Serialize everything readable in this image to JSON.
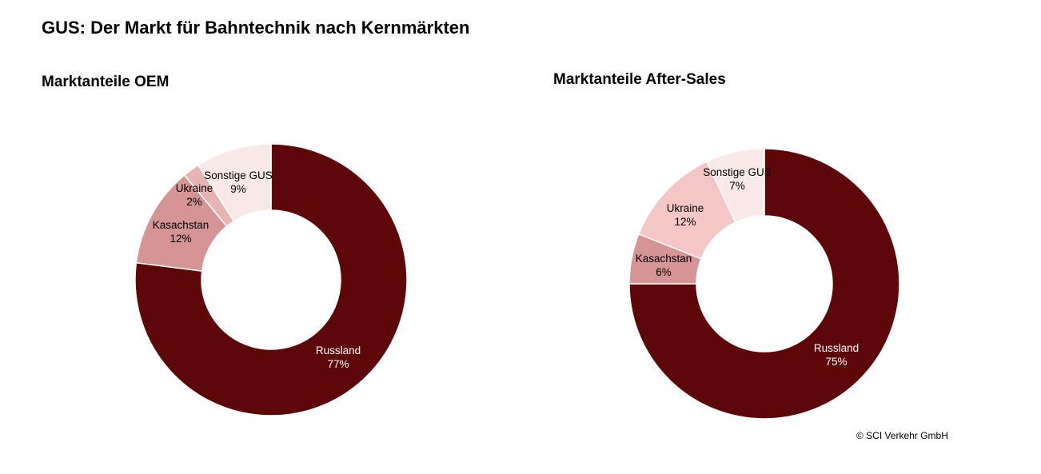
{
  "title": "GUS: Der Markt für Bahntechnik nach Kernmärkten",
  "copyright": "© SCI Verkehr GmbH",
  "chart_data": [
    {
      "type": "pie",
      "variant": "donut",
      "title": "Marktanteile OEM",
      "slices": [
        {
          "label": "Russland",
          "value": 77,
          "display": "77%",
          "color": "#5e0709",
          "text_color": "#ffffff"
        },
        {
          "label": "Kasachstan",
          "value": 12,
          "display": "12%",
          "color": "#d69494",
          "text_color": "#000000"
        },
        {
          "label": "Ukraine",
          "value": 2,
          "display": "2%",
          "color": "#e6b4b2",
          "text_color": "#000000"
        },
        {
          "label": "Sonstige GUS",
          "value": 9,
          "display": "9%",
          "color": "#f8e8e8",
          "text_color": "#000000"
        }
      ]
    },
    {
      "type": "pie",
      "variant": "donut",
      "title": "Marktanteile After-Sales",
      "slices": [
        {
          "label": "Russland",
          "value": 75,
          "display": "75%",
          "color": "#5e0709",
          "text_color": "#ffffff"
        },
        {
          "label": "Kasachstan",
          "value": 6,
          "display": "6%",
          "color": "#d69494",
          "text_color": "#000000"
        },
        {
          "label": "Ukraine",
          "value": 12,
          "display": "12%",
          "color": "#f4c6c6",
          "text_color": "#000000"
        },
        {
          "label": "Sonstige GUS",
          "value": 7,
          "display": "7%",
          "color": "#f8e8e8",
          "text_color": "#000000"
        }
      ]
    }
  ]
}
